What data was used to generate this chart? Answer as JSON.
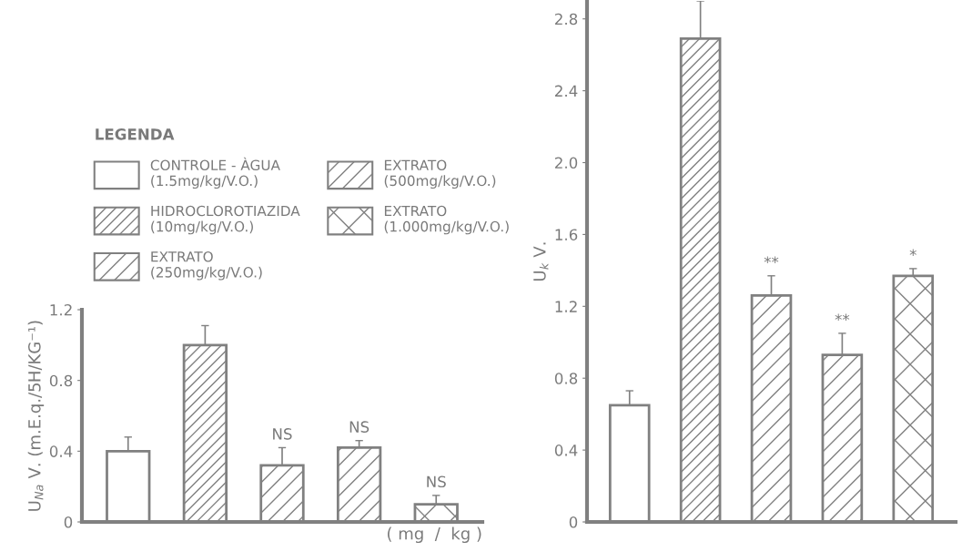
{
  "chart_data": [
    {
      "type": "bar",
      "ylabel": "U$_{Na}$ V. (m.E.q./5H/KG⁻¹)",
      "xlabel": "( mg  /  kg )",
      "legend_title": "LEGENDA",
      "legend": "top left",
      "grid": false,
      "tick_labels": "y",
      "categories": [
        null,
        null,
        null,
        null,
        null
      ],
      "ylim": [
        0,
        1.2
      ],
      "yticks": [
        0,
        0.4,
        0.8,
        1.2
      ],
      "series": [
        {
          "name": "CONTROLE - ÀGUA\n(1.5mg/kg/V.O.)",
          "color": "#808080",
          "values": [
            0.4,
            null,
            null,
            null,
            null
          ],
          "errors": [
            [
              0.4,
              0.48
            ],
            null,
            null,
            null,
            null
          ]
        },
        {
          "name": "HIDROCLOROTIAZIDA\n(10mg/kg/V.O.)",
          "color": "#808080",
          "values": [
            null,
            1.0,
            null,
            null,
            null
          ],
          "errors": [
            null,
            [
              1.0,
              1.11
            ],
            null,
            null,
            null
          ]
        },
        {
          "name": "EXTRATO\n(250mg/kg/V.O.)",
          "color": "#808080",
          "values": [
            null,
            null,
            0.32,
            null,
            null
          ],
          "errors": [
            null,
            null,
            [
              0.32,
              0.42
            ],
            null,
            null
          ],
          "value_labels": [
            null,
            null,
            "NS",
            null,
            null
          ]
        },
        {
          "name": "EXTRATO\n(500mg/kg/V.O.)",
          "color": "#808080",
          "values": [
            null,
            null,
            null,
            0.42,
            null
          ],
          "errors": [
            null,
            null,
            null,
            [
              0.42,
              0.46
            ],
            null
          ],
          "value_labels": [
            null,
            null,
            null,
            "NS",
            null
          ]
        },
        {
          "name": "EXTRATO\n(1.000mg/kg/V.O.)",
          "color": "#808080",
          "values": [
            null,
            null,
            null,
            null,
            0.1
          ],
          "errors": [
            null,
            null,
            null,
            null,
            [
              0.1,
              0.15
            ]
          ],
          "value_labels": [
            null,
            null,
            null,
            null,
            "NS"
          ]
        }
      ]
    },
    {
      "type": "bar",
      "ylabel": "U$_{k}$ V.",
      "grid": false,
      "tick_labels": "y",
      "categories": [
        null,
        null,
        null,
        null,
        null
      ],
      "ylim": [
        0,
        2.9
      ],
      "yticks": [
        0,
        0.4,
        0.8,
        1.2,
        1.6,
        {
          "value": 2,
          "label": "2.0"
        },
        2.4,
        2.8
      ],
      "series": [
        {
          "color": "#808080",
          "values": [
            0.65,
            null,
            null,
            null,
            null
          ],
          "errors": [
            [
              0.65,
              0.73
            ],
            null,
            null,
            null,
            null
          ]
        },
        {
          "color": "#808080",
          "values": [
            null,
            2.69,
            null,
            null,
            null
          ],
          "errors": [
            null,
            [
              2.69,
              2.9
            ],
            null,
            null,
            null
          ]
        },
        {
          "color": "#808080",
          "values": [
            null,
            null,
            1.26,
            null,
            null
          ],
          "errors": [
            null,
            null,
            [
              1.26,
              1.37
            ],
            null,
            null
          ],
          "value_labels": [
            null,
            null,
            "**",
            null,
            null
          ]
        },
        {
          "color": "#808080",
          "values": [
            null,
            null,
            null,
            0.93,
            null
          ],
          "errors": [
            null,
            null,
            null,
            [
              0.93,
              1.05
            ],
            null
          ],
          "value_labels": [
            null,
            null,
            null,
            "**",
            null
          ]
        },
        {
          "color": "#808080",
          "values": [
            null,
            null,
            null,
            null,
            1.37
          ],
          "errors": [
            null,
            null,
            null,
            null,
            [
              1.37,
              1.41
            ]
          ],
          "value_labels": [
            null,
            null,
            null,
            null,
            "*"
          ]
        }
      ]
    }
  ]
}
